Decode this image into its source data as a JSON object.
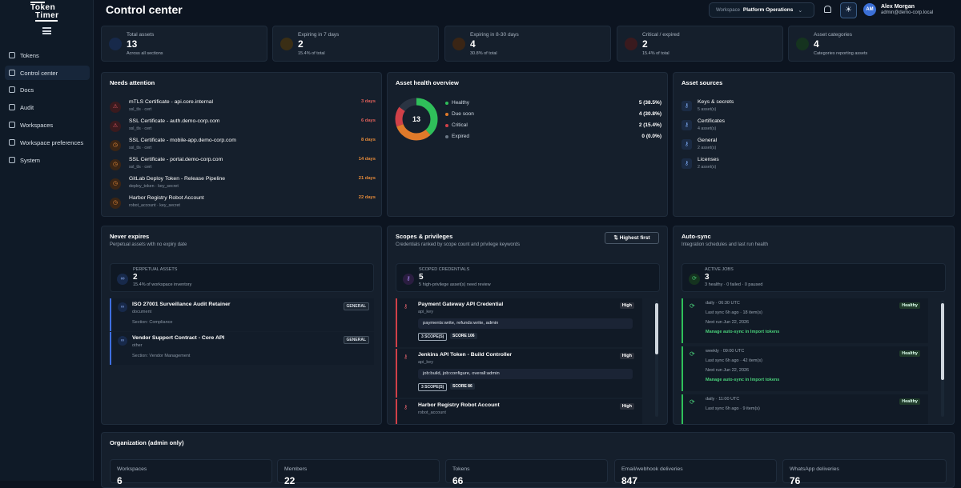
{
  "app": {
    "logo_line1": "Token",
    "logo_line2": "Timer"
  },
  "sidebar": {
    "items": [
      {
        "label": "Tokens",
        "icon": "tag-icon"
      },
      {
        "label": "Control center",
        "icon": "gauge-icon"
      },
      {
        "label": "Docs",
        "icon": "book-icon"
      },
      {
        "label": "Audit",
        "icon": "activity-icon"
      },
      {
        "label": "Workspaces",
        "icon": "building-icon"
      },
      {
        "label": "Workspace preferences",
        "icon": "bell-icon"
      },
      {
        "label": "System",
        "icon": "gear-icon"
      }
    ]
  },
  "header": {
    "title": "Control center",
    "workspace_label": "Workspace",
    "workspace_value": "Platform Operations",
    "user_initials": "AM",
    "user_name": "Alex Morgan",
    "user_email": "admin@demo-corp.local"
  },
  "stats": [
    {
      "label": "Total assets",
      "value": "13",
      "sub": "Across all sections",
      "color": "#3a6fd8"
    },
    {
      "label": "Expiring in 7 days",
      "value": "2",
      "sub": "15.4% of total",
      "color": "#d89a2a"
    },
    {
      "label": "Expiring in 8-30 days",
      "value": "4",
      "sub": "30.8% of total",
      "color": "#e07a2a"
    },
    {
      "label": "Critical / expired",
      "value": "2",
      "sub": "15.4% of total",
      "color": "#d04048"
    },
    {
      "label": "Asset categories",
      "value": "4",
      "sub": "Categories reporting assets",
      "color": "#2fbf5a"
    }
  ],
  "needs_attention": {
    "title": "Needs attention",
    "items": [
      {
        "name": "mTLS Certificate - api.core.internal",
        "meta": "ssl_tls · cert",
        "days": "3 days",
        "level": "critical"
      },
      {
        "name": "SSL Certificate - auth.demo-corp.com",
        "meta": "ssl_tls · cert",
        "days": "6 days",
        "level": "critical"
      },
      {
        "name": "SSL Certificate - mobile-app.demo-corp.com",
        "meta": "ssl_tls · cert",
        "days": "8 days",
        "level": "warning"
      },
      {
        "name": "SSL Certificate - portal.demo-corp.com",
        "meta": "ssl_tls · cert",
        "days": "14 days",
        "level": "warning"
      },
      {
        "name": "GitLab Deploy Token - Release Pipeline",
        "meta": "deploy_token · key_secret",
        "days": "21 days",
        "level": "warning"
      },
      {
        "name": "Harbor Registry Robot Account",
        "meta": "robot_account · key_secret",
        "days": "22 days",
        "level": "warning"
      }
    ]
  },
  "asset_health": {
    "title": "Asset health overview",
    "total": "13",
    "rows": [
      {
        "label": "Healthy",
        "value": "5 (38.5%)",
        "color": "#2fbf5a"
      },
      {
        "label": "Due soon",
        "value": "4 (30.8%)",
        "color": "#e07a2a"
      },
      {
        "label": "Critical",
        "value": "2 (15.4%)",
        "color": "#d04048"
      },
      {
        "label": "Expired",
        "value": "0 (0.0%)",
        "color": "#6b7785"
      }
    ]
  },
  "asset_sources": {
    "title": "Asset sources",
    "items": [
      {
        "name": "Keys & secrets",
        "count": "5 asset(s)"
      },
      {
        "name": "Certificates",
        "count": "4 asset(s)"
      },
      {
        "name": "General",
        "count": "2 asset(s)"
      },
      {
        "name": "Licenses",
        "count": "2 asset(s)"
      }
    ]
  },
  "never_expires": {
    "title": "Never expires",
    "subtitle": "Perpetual assets with no expiry date",
    "summary_label": "Perpetual assets",
    "summary_value": "2",
    "summary_sub": "15.4% of workspace inventory",
    "items": [
      {
        "name": "ISO 27001 Surveillance Audit Retainer",
        "type": "document",
        "section": "Section: Compliance",
        "tag": "GENERAL"
      },
      {
        "name": "Vendor Support Contract - Core API",
        "type": "other",
        "section": "Section: Vendor Management",
        "tag": "GENERAL"
      }
    ]
  },
  "scopes": {
    "title": "Scopes & privileges",
    "subtitle": "Credentials ranked by scope count and privilege keywords",
    "sort_label": "Highest first",
    "summary_label": "Scoped credentials",
    "summary_value": "5",
    "summary_sub": "5 high-privilege asset(s) need review",
    "items": [
      {
        "name": "Payment Gateway API Credential",
        "type": "api_key",
        "risk": "High",
        "perms": "payments:write, refunds:write, admin",
        "scope": "3 SCOPE(S)",
        "score": "SCORE 106"
      },
      {
        "name": "Jenkins API Token - Build Controller",
        "type": "api_key",
        "risk": "High",
        "perms": "job:build, job:configure, overall:admin",
        "scope": "3 SCOPE(S)",
        "score": "SCORE 86"
      },
      {
        "name": "Harbor Registry Robot Account",
        "type": "robot_account",
        "risk": "High",
        "perms": "",
        "scope": "",
        "score": ""
      }
    ]
  },
  "autosync": {
    "title": "Auto-sync",
    "subtitle": "Integration schedules and last run health",
    "summary_label": "Active jobs",
    "summary_value": "3",
    "summary_sub": "3 healthy · 0 failed · 0 paused",
    "manage_label": "Manage auto-sync in Import tokens",
    "items": [
      {
        "schedule": "daily · 06:30 UTC",
        "status": "Healthy",
        "last": "Last sync 6h ago · 18 item(s)",
        "next": "Next run Jun 22, 2026",
        "manage": true
      },
      {
        "schedule": "weekly · 09:00 UTC",
        "status": "Healthy",
        "last": "Last sync 6h ago · 42 item(s)",
        "next": "Next run Jun 22, 2026",
        "manage": true
      },
      {
        "schedule": "daily · 11:00 UTC",
        "status": "Healthy",
        "last": "Last sync 6h ago · 9 item(s)",
        "next": "",
        "manage": false
      }
    ]
  },
  "organization": {
    "title": "Organization (admin only)",
    "tiles": [
      {
        "label": "Workspaces",
        "value": "6"
      },
      {
        "label": "Members",
        "value": "22"
      },
      {
        "label": "Tokens",
        "value": "66"
      },
      {
        "label": "Email/webhook deliveries",
        "value": "847"
      },
      {
        "label": "WhatsApp deliveries",
        "value": "76"
      }
    ]
  },
  "colors": {
    "accent": "#3a6fd8",
    "danger": "#d04048",
    "warning": "#e07a2a",
    "success": "#2fbf5a"
  }
}
